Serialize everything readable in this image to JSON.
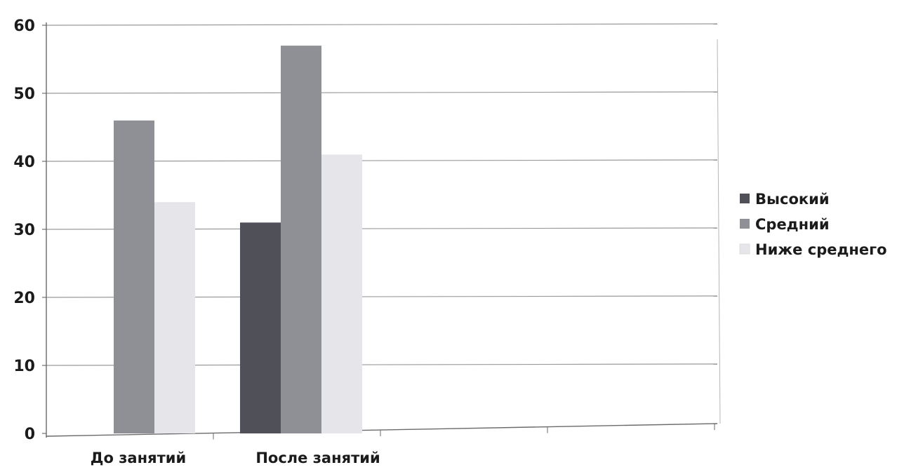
{
  "chart_data": {
    "type": "bar",
    "categories": [
      "До занятий",
      "После занятий"
    ],
    "series": [
      {
        "name": "Высокий",
        "values": [
          0,
          31
        ],
        "color": "#505058"
      },
      {
        "name": "Средний",
        "values": [
          46,
          57
        ],
        "color": "#8f8f96"
      },
      {
        "name": "Ниже среднего",
        "values": [
          34,
          41
        ],
        "color": "#e6e6ea"
      }
    ],
    "title": "",
    "xlabel": "",
    "ylabel": "",
    "ylim": [
      0,
      60
    ],
    "yticks": [
      0,
      10,
      20,
      30,
      40,
      50,
      60
    ],
    "grid": true,
    "legend_position": "right"
  }
}
